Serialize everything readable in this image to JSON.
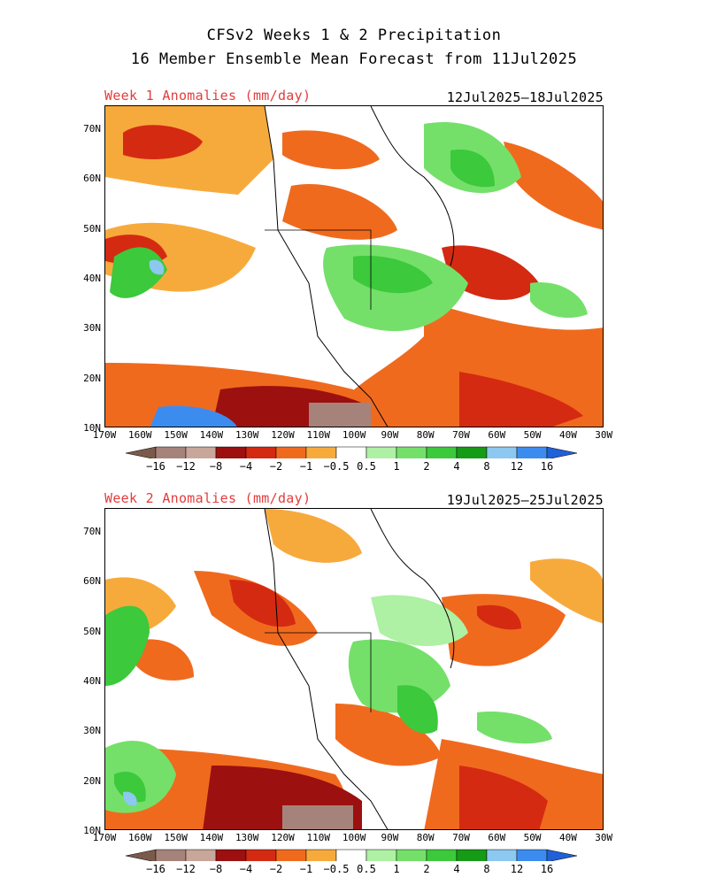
{
  "title_line1": "CFSv2 Weeks 1 & 2 Precipitation",
  "title_line2": "16 Member Ensemble Mean Forecast from 11Jul2025",
  "panels": [
    {
      "label": "Week 1 Anomalies (mm/day)",
      "dates": "12Jul2025–18Jul2025"
    },
    {
      "label": "Week 2 Anomalies (mm/day)",
      "dates": "19Jul2025–25Jul2025"
    }
  ],
  "lat_labels": [
    "70N",
    "60N",
    "50N",
    "40N",
    "30N",
    "20N",
    "10N"
  ],
  "lon_labels": [
    "170W",
    "160W",
    "150W",
    "140W",
    "130W",
    "120W",
    "110W",
    "100W",
    "90W",
    "80W",
    "70W",
    "60W",
    "50W",
    "40W",
    "30W"
  ],
  "colorbar": {
    "labels": [
      "−16",
      "−12",
      "−8",
      "−4",
      "−2",
      "−1",
      "−0.5",
      "0.5",
      "1",
      "2",
      "4",
      "8",
      "12",
      "16"
    ],
    "colors": [
      "#7b5a4b",
      "#a6837a",
      "#c9a69a",
      "#9c1010",
      "#d42a12",
      "#f06a1e",
      "#f7aa3c",
      "#ffffff",
      "#aef0a4",
      "#74e06a",
      "#3cc93c",
      "#169b16",
      "#8cc8f0",
      "#3c8cf0",
      "#2060d8"
    ]
  }
}
